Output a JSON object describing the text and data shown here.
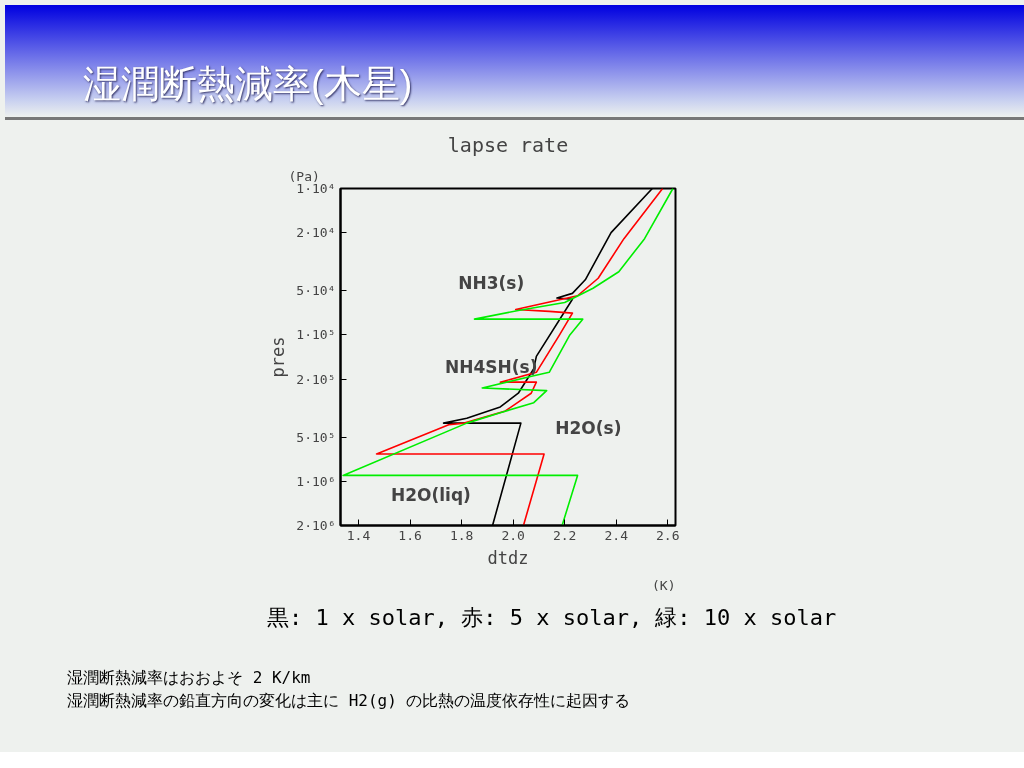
{
  "chart_data": {
    "type": "line",
    "title": "湿潤断熱減率(木星)",
    "subtitle": "lapse rate",
    "xlabel": "dtdz",
    "ylabel": "pres",
    "log": "y",
    "grid": false,
    "marker": "none",
    "line_style": "solid",
    "xlim": [
      1.33,
      2.63
    ],
    "xticks": [
      1.4,
      1.6,
      1.8,
      {
        "value": 2.0,
        "label": "2.0"
      },
      2.2,
      2.4,
      2.6
    ],
    "ylim": [
      2000000,
      10000
    ],
    "yticks": [
      {
        "value": 10000,
        "label": "1·10⁴"
      },
      {
        "value": 20000,
        "label": "2·10⁴"
      },
      {
        "value": 50000,
        "label": "5·10⁴"
      },
      {
        "value": 100000,
        "label": "1·10⁵"
      },
      {
        "value": 200000,
        "label": "2·10⁵"
      },
      {
        "value": 500000,
        "label": "5·10⁵"
      },
      {
        "value": 1000000,
        "label": "1·10⁶"
      },
      {
        "value": 2000000,
        "label": "2·10⁶"
      }
    ],
    "series": [
      {
        "color": "#000000",
        "x": [
          2.54,
          2.38,
          2.28,
          2.23,
          2.17,
          2.23,
          2.09,
          2.08,
          2.02,
          1.95,
          1.82,
          1.73,
          2.03,
          1.92
        ],
        "values": [
          10000,
          20000,
          42000,
          52000,
          56000,
          57000,
          140000,
          170000,
          250000,
          310000,
          370000,
          400000,
          400000,
          2000000
        ]
      },
      {
        "color": "#ff0000",
        "x": [
          2.58,
          2.43,
          2.33,
          2.25,
          2.01,
          2.14,
          2.23,
          2.18,
          2.09,
          1.95,
          2.09,
          2.07,
          1.97,
          1.81,
          1.75,
          1.47,
          2.12,
          2.04
        ],
        "values": [
          10000,
          22000,
          41000,
          54000,
          67000,
          69000,
          71000,
          100000,
          180000,
          210000,
          210000,
          250000,
          330000,
          400000,
          410000,
          650000,
          650000,
          2000000
        ]
      },
      {
        "color": "#00ee00",
        "x": [
          2.62,
          2.51,
          2.41,
          2.31,
          2.2,
          2.02,
          1.85,
          2.27,
          2.22,
          2.14,
          2.08,
          1.88,
          2.13,
          2.08,
          1.95,
          1.82,
          1.34,
          2.25,
          2.19
        ],
        "values": [
          10000,
          22000,
          37000,
          48000,
          60000,
          68000,
          78000,
          78000,
          100000,
          180000,
          190000,
          230000,
          240000,
          290000,
          340000,
          400000,
          910000,
          910000,
          2000000
        ]
      }
    ],
    "annotations": [
      "(Pa)",
      "(K)",
      "NH3(s)",
      "NH4SH(s)",
      "H2O(s)",
      "H2O(liq)",
      "黒: 1 x solar, 赤: 5 x solar, 緑: 10 x solar",
      "湿潤断熱減率はおおよそ 2 K/km",
      "湿潤断熱減率の鉛直方向の変化は主に H2(g) の比熱の温度依存性に起因する"
    ]
  }
}
